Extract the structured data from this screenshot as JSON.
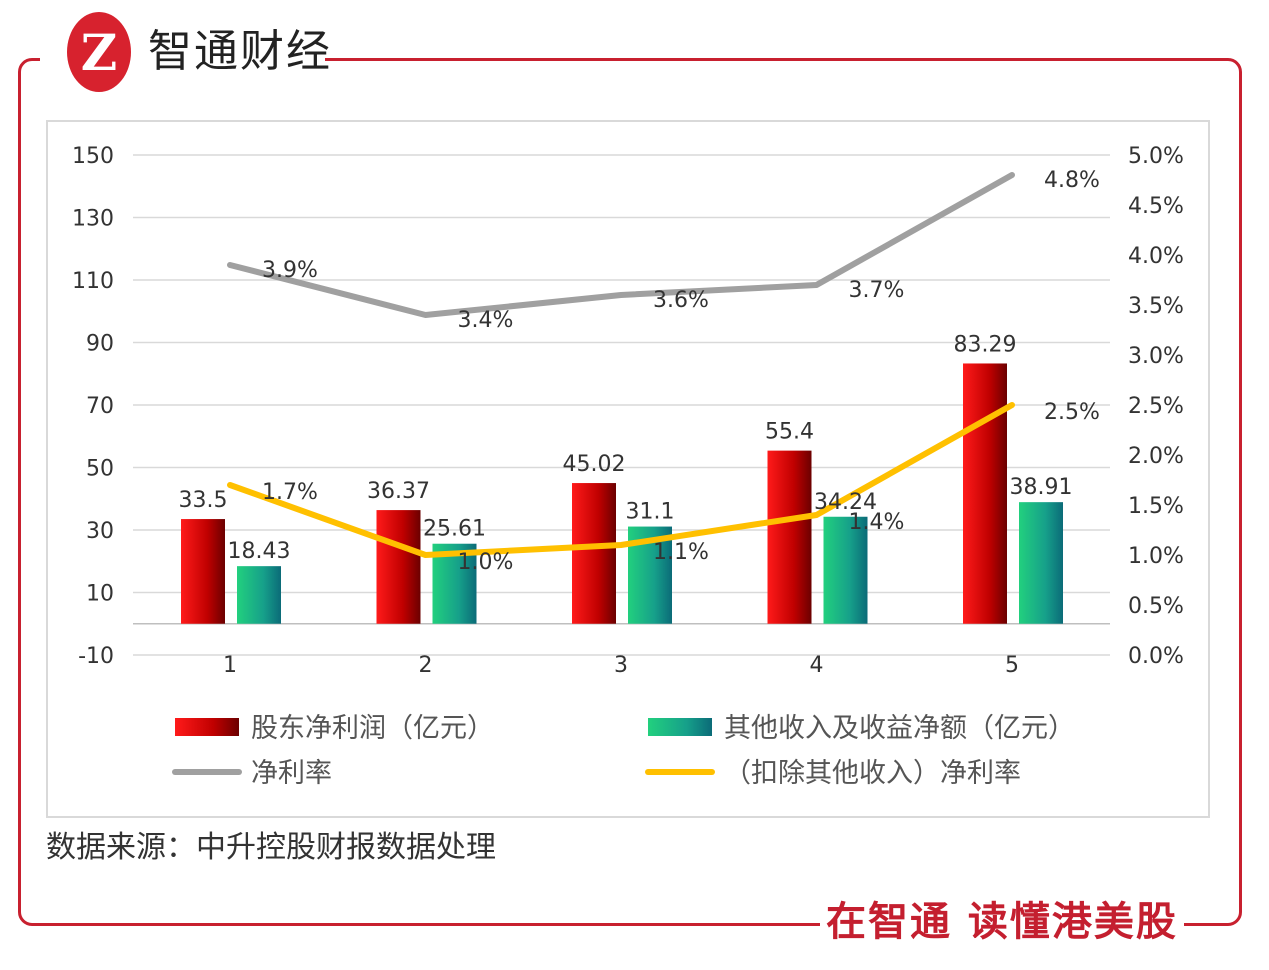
{
  "header": {
    "brand": "智通财经",
    "logo_letter": "Z"
  },
  "footer": {
    "slogan": "在智通  读懂港美股",
    "source": "数据来源：中升控股财报数据处理"
  },
  "colors": {
    "frame": "#c8202f",
    "red_bar": "#c00000",
    "green_bar": "#1fb57a",
    "gray_line": "#a0a0a0",
    "yellow_line": "#ffc000"
  },
  "chart_data": {
    "type": "bar+line",
    "categories": [
      "1",
      "2",
      "3",
      "4",
      "5"
    ],
    "y_left": {
      "range": [
        -10,
        150
      ],
      "ticks": [
        "150",
        "130",
        "110",
        "90",
        "70",
        "50",
        "30",
        "10",
        "-10"
      ]
    },
    "y_right": {
      "range": [
        0,
        5.0
      ],
      "ticks": [
        "5.0%",
        "4.5%",
        "4.0%",
        "3.5%",
        "3.0%",
        "2.5%",
        "2.0%",
        "1.5%",
        "1.0%",
        "0.5%",
        "0.0%"
      ]
    },
    "grid": true,
    "legend_placement": "bottom",
    "series": [
      {
        "name": "股东净利润（亿元）",
        "type": "bar",
        "axis": "left",
        "values": [
          33.5,
          36.37,
          45.02,
          55.4,
          83.29
        ],
        "labels": [
          "33.5",
          "36.37",
          "45.02",
          "55.4",
          "83.29"
        ]
      },
      {
        "name": "其他收入及收益净额（亿元）",
        "type": "bar",
        "axis": "left",
        "values": [
          18.43,
          25.61,
          31.1,
          34.24,
          38.91
        ],
        "labels": [
          "18.43",
          "25.61",
          "31.1",
          "34.24",
          "38.91"
        ]
      },
      {
        "name": "净利率",
        "type": "line",
        "axis": "right",
        "values": [
          3.9,
          3.4,
          3.6,
          3.7,
          4.8
        ],
        "labels": [
          "3.9%",
          "3.4%",
          "3.6%",
          "3.7%",
          "4.8%"
        ]
      },
      {
        "name": "（扣除其他收入）净利率",
        "type": "line",
        "axis": "right",
        "values": [
          1.7,
          1.0,
          1.1,
          1.4,
          2.5
        ],
        "labels": [
          "1.7%",
          "1.0%",
          "1.1%",
          "1.4%",
          "2.5%"
        ]
      }
    ]
  }
}
